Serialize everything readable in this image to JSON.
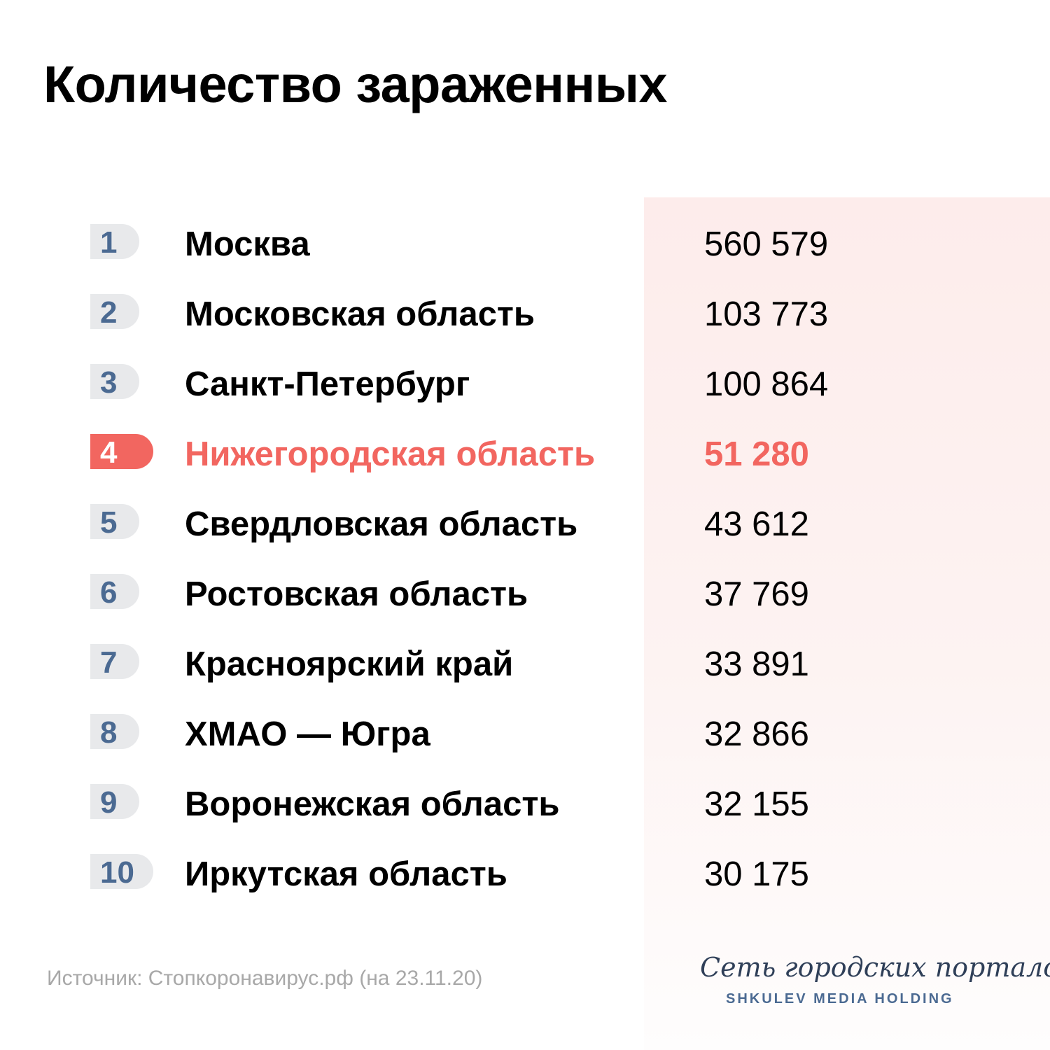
{
  "title": "Количество зараженных",
  "source": "Источник: Стопкоронавирус.рф (на 23.11.20)",
  "logo": {
    "script": "Сеть городских порталов",
    "sub": "SHKULEV MEDIA HOLDING"
  },
  "colors": {
    "accent": "#f26660",
    "rank_text": "#4b6a92",
    "badge_bg": "#e8e9eb",
    "panel_bg": "#fdeceb"
  },
  "chart_data": {
    "type": "table",
    "title": "Количество зараженных",
    "columns": [
      "rank",
      "region",
      "value"
    ],
    "highlighted_rank": 4,
    "rows": [
      {
        "rank": "1",
        "region": "Москва",
        "value": "560 579"
      },
      {
        "rank": "2",
        "region": "Московская область",
        "value": "103 773"
      },
      {
        "rank": "3",
        "region": "Санкт-Петербург",
        "value": "100 864"
      },
      {
        "rank": "4",
        "region": "Нижегородская область",
        "value": "51 280"
      },
      {
        "rank": "5",
        "region": "Свердловская область",
        "value": "43 612"
      },
      {
        "rank": "6",
        "region": "Ростовская область",
        "value": "37 769"
      },
      {
        "rank": "7",
        "region": "Красноярский край",
        "value": "33 891"
      },
      {
        "rank": "8",
        "region": "ХМАО — Югра",
        "value": "32 866"
      },
      {
        "rank": "9",
        "region": "Воронежская область",
        "value": "32 155"
      },
      {
        "rank": "10",
        "region": "Иркутская область",
        "value": "30 175"
      }
    ]
  }
}
